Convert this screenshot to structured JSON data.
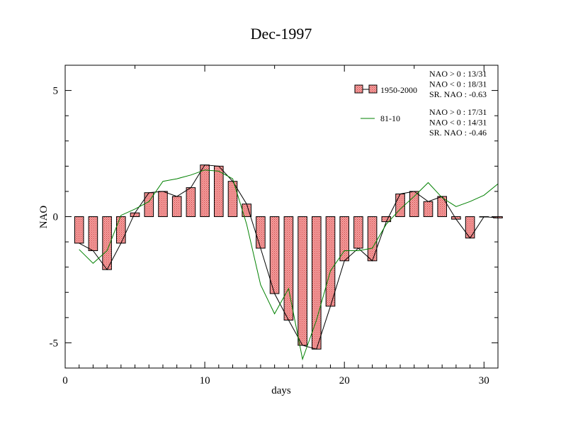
{
  "chart_data": {
    "type": "bar",
    "title": "Dec-1997",
    "xlabel": "days",
    "ylabel": "NAO",
    "xlim": [
      0,
      31
    ],
    "ylim": [
      -6,
      6
    ],
    "x_ticks": [
      0,
      10,
      20,
      30
    ],
    "y_ticks": [
      -5,
      0,
      5
    ],
    "x_tick_labels": [
      "0",
      "10",
      "20",
      "30"
    ],
    "y_tick_labels": [
      "-5",
      "0",
      "5"
    ],
    "grid": false,
    "legend_position": "top-right",
    "x": [
      1,
      2,
      3,
      4,
      5,
      6,
      7,
      8,
      9,
      10,
      11,
      12,
      13,
      14,
      15,
      16,
      17,
      18,
      19,
      20,
      21,
      22,
      23,
      24,
      25,
      26,
      27,
      28,
      29,
      30,
      31
    ],
    "series": [
      {
        "name": "1950-2000",
        "kind": "bar",
        "color": "#f08080",
        "values": [
          -1.05,
          -1.35,
          -2.1,
          -1.05,
          0.15,
          0.95,
          1.0,
          0.8,
          1.15,
          2.05,
          2.0,
          1.4,
          0.5,
          -1.25,
          -3.05,
          -4.1,
          -5.1,
          -5.25,
          -3.55,
          -1.75,
          -1.25,
          -1.75,
          -0.2,
          0.9,
          1.0,
          0.6,
          0.8,
          -0.1,
          -0.85,
          0.0,
          -0.05
        ]
      },
      {
        "name": "81-10",
        "kind": "line",
        "color": "#008000",
        "values": [
          -1.3,
          -1.85,
          -1.35,
          0.05,
          0.3,
          0.6,
          1.4,
          1.5,
          1.65,
          1.85,
          1.8,
          1.5,
          -0.3,
          -2.7,
          -3.85,
          -2.85,
          -5.65,
          -4.1,
          -2.15,
          -1.35,
          -1.35,
          -1.25,
          -0.3,
          0.3,
          0.8,
          1.35,
          0.75,
          0.4,
          0.6,
          0.85,
          1.3
        ]
      }
    ],
    "legend_stats": [
      {
        "series": "1950-2000",
        "lines": [
          "NAO > 0 : 13/31",
          "NAO < 0 : 18/31",
          "SR. NAO : -0.63"
        ]
      },
      {
        "series": "81-10",
        "lines": [
          "NAO > 0 : 17/31",
          "NAO < 0 : 14/31",
          "SR. NAO : -0.46"
        ]
      }
    ]
  }
}
